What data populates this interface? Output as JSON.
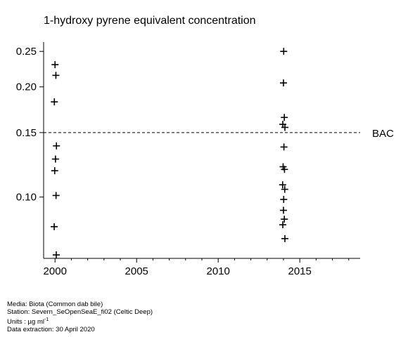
{
  "chart_data": {
    "type": "scatter",
    "title": "1-hydroxy pyrene equivalent concentration",
    "xlabel": "",
    "ylabel": "",
    "xlim": [
      1999.3,
      2018.7
    ],
    "ylim": [
      0.068,
      0.265
    ],
    "y_scale": "log",
    "x_ticks": [
      2000,
      2005,
      2010,
      2015
    ],
    "x_tick_labels": [
      "2000",
      "2005",
      "2010",
      "2015"
    ],
    "y_ticks": [
      0.1,
      0.15,
      0.2,
      0.25
    ],
    "y_tick_labels": [
      "0.10",
      "0.15",
      "0.20",
      "0.25"
    ],
    "marker": "plus",
    "grid": false,
    "reference_lines": [
      {
        "label": "BAC",
        "y": 0.15,
        "style": "dashed"
      }
    ],
    "points": [
      {
        "x": 2000,
        "y": 0.23
      },
      {
        "x": 2000,
        "y": 0.215
      },
      {
        "x": 2000,
        "y": 0.182
      },
      {
        "x": 2000,
        "y": 0.138
      },
      {
        "x": 2000,
        "y": 0.127
      },
      {
        "x": 2000,
        "y": 0.118
      },
      {
        "x": 2000,
        "y": 0.101
      },
      {
        "x": 2000,
        "y": 0.083
      },
      {
        "x": 2000,
        "y": 0.0695
      },
      {
        "x": 2014,
        "y": 0.25
      },
      {
        "x": 2014,
        "y": 0.205
      },
      {
        "x": 2014,
        "y": 0.165
      },
      {
        "x": 2014,
        "y": 0.158
      },
      {
        "x": 2014,
        "y": 0.155
      },
      {
        "x": 2014,
        "y": 0.137
      },
      {
        "x": 2014,
        "y": 0.121
      },
      {
        "x": 2014,
        "y": 0.119
      },
      {
        "x": 2014,
        "y": 0.108
      },
      {
        "x": 2014,
        "y": 0.105
      },
      {
        "x": 2014,
        "y": 0.0985
      },
      {
        "x": 2014,
        "y": 0.092
      },
      {
        "x": 2014,
        "y": 0.087
      },
      {
        "x": 2014,
        "y": 0.084
      },
      {
        "x": 2014,
        "y": 0.077
      }
    ]
  },
  "footer": {
    "media": "Media: Biota (Common dab bile)",
    "station": "Station: Severn_SeOpenSeaE_fi02 (Celtic Deep)",
    "units_prefix": "Units : µg ml",
    "units_exp": "-1",
    "extraction": "Data extraction: 30 April 2020"
  }
}
